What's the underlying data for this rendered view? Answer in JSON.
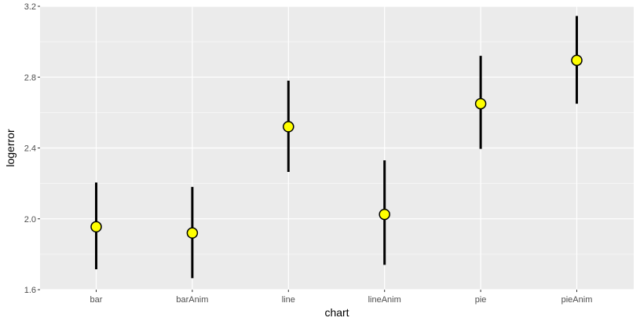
{
  "chart_data": {
    "type": "scatter",
    "xlabel": "chart",
    "ylabel": "logerror",
    "categories": [
      "bar",
      "barAnim",
      "line",
      "lineAnim",
      "pie",
      "pieAnim"
    ],
    "values": [
      1.955,
      1.92,
      2.52,
      2.025,
      2.65,
      2.895
    ],
    "ci_lower": [
      1.715,
      1.665,
      2.265,
      1.74,
      2.395,
      2.65
    ],
    "ci_upper": [
      2.205,
      2.18,
      2.78,
      2.33,
      2.92,
      3.145
    ],
    "ylim": [
      1.6,
      3.2
    ],
    "yticks": [
      1.6,
      2.0,
      2.4,
      2.8,
      3.2
    ],
    "ytick_labels": [
      "1.6",
      "2.0",
      "2.4",
      "2.8",
      "3.2"
    ],
    "grid": true,
    "legend": "none"
  },
  "colors": {
    "panel_background": "#ebebeb",
    "grid": "#ffffff",
    "point_fill": "#ffff00",
    "point_stroke": "#000000",
    "error_bar": "#000000"
  }
}
